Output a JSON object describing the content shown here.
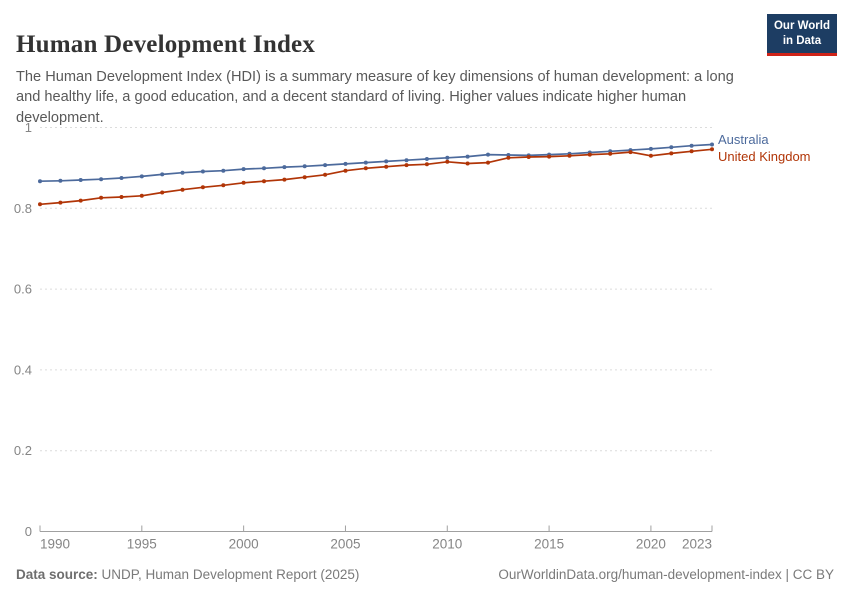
{
  "header": {
    "title": "Human Development Index",
    "subtitle": "The Human Development Index (HDI) is a summary measure of key dimensions of human development: a long and healthy life, a good education, and a decent standard of living. Higher values indicate higher human development."
  },
  "logo": {
    "line1": "Our World",
    "line2": "in Data",
    "bg_color": "#1d3d63",
    "accent_color": "#cf2318"
  },
  "footer": {
    "source_label": "Data source:",
    "source_text": " UNDP, Human Development Report (2025)",
    "link_text": "OurWorldinData.org/human-development-index | CC BY"
  },
  "chart_data": {
    "type": "line",
    "title": "Human Development Index",
    "xlabel": "",
    "ylabel": "",
    "xlim": [
      1990,
      2023
    ],
    "ylim": [
      0,
      1
    ],
    "xticks": [
      1990,
      1995,
      2000,
      2005,
      2010,
      2015,
      2020,
      2023
    ],
    "yticks": [
      0,
      0.2,
      0.4,
      0.6,
      0.8,
      1
    ],
    "ytick_labels": [
      "0",
      "0.2",
      "0.4",
      "0.6",
      "0.8",
      "1"
    ],
    "grid": "horizontal-dashed",
    "legend_position": "right-of-line-ends",
    "x": [
      1990,
      1991,
      1992,
      1993,
      1994,
      1995,
      1996,
      1997,
      1998,
      1999,
      2000,
      2001,
      2002,
      2003,
      2004,
      2005,
      2006,
      2007,
      2008,
      2009,
      2010,
      2011,
      2012,
      2013,
      2014,
      2015,
      2016,
      2017,
      2018,
      2019,
      2020,
      2021,
      2022,
      2023
    ],
    "series": [
      {
        "name": "Australia",
        "color": "#4C6A9C",
        "values": [
          0.867,
          0.868,
          0.87,
          0.872,
          0.875,
          0.879,
          0.884,
          0.888,
          0.891,
          0.893,
          0.897,
          0.899,
          0.902,
          0.904,
          0.907,
          0.91,
          0.913,
          0.916,
          0.919,
          0.922,
          0.925,
          0.928,
          0.933,
          0.932,
          0.931,
          0.933,
          0.935,
          0.938,
          0.941,
          0.944,
          0.947,
          0.951,
          0.955,
          0.958
        ]
      },
      {
        "name": "United Kingdom",
        "color": "#B13507",
        "values": [
          0.81,
          0.814,
          0.819,
          0.826,
          0.828,
          0.831,
          0.839,
          0.846,
          0.852,
          0.857,
          0.863,
          0.867,
          0.871,
          0.877,
          0.883,
          0.893,
          0.899,
          0.903,
          0.907,
          0.909,
          0.915,
          0.911,
          0.913,
          0.925,
          0.927,
          0.928,
          0.93,
          0.933,
          0.935,
          0.939,
          0.93,
          0.936,
          0.941,
          0.946
        ]
      }
    ],
    "axis_color": "#a0a0a0",
    "grid_color": "#dcdcdc",
    "tick_label_color": "#858585"
  }
}
